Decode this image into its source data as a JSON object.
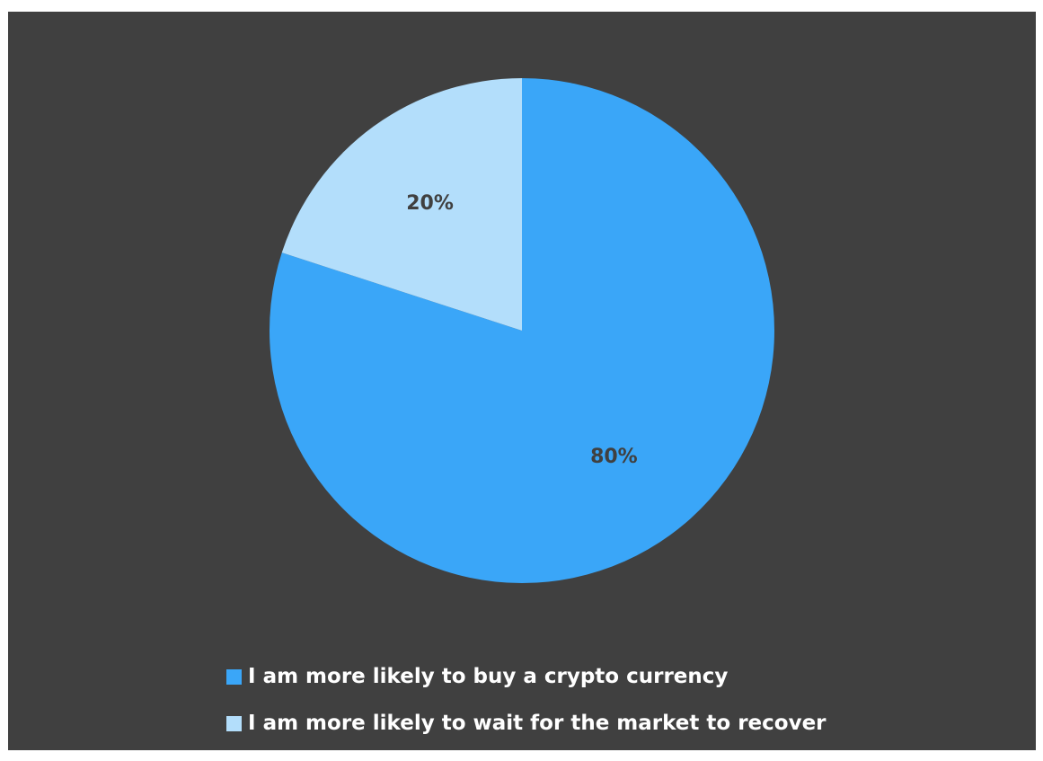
{
  "chart_data": {
    "type": "pie",
    "title": "",
    "slices": [
      {
        "label": "I am more likely to buy a crypto currency",
        "value": 80,
        "display": "80%",
        "color": "#3aa6f8"
      },
      {
        "label": "I am more likely to wait for the market to recover",
        "value": 20,
        "display": "20%",
        "color": "#b3defb"
      }
    ],
    "start_angle_deg": 0,
    "direction": "clockwise",
    "legend_position": "bottom",
    "background_color": "#404040",
    "label_color": "#404040",
    "legend_text_color": "#ffffff"
  }
}
